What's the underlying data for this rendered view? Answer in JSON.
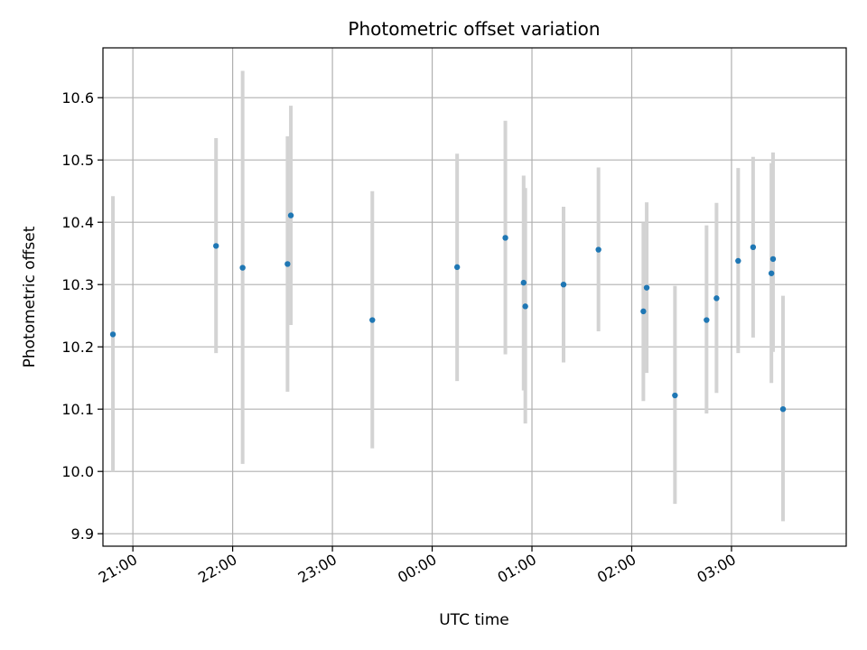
{
  "chart_data": {
    "type": "scatter",
    "title": "Photometric offset variation",
    "xlabel": "UTC time",
    "ylabel": "Photometric offset",
    "x_unit": "UTC time (hh:mm, spanning midnight)",
    "xlim": [
      "20:42",
      "04:09"
    ],
    "ylim": [
      9.88,
      10.68
    ],
    "x_ticks": [
      "21:00",
      "22:00",
      "23:00",
      "00:00",
      "01:00",
      "02:00",
      "03:00"
    ],
    "y_ticks": [
      "9.9",
      "10.0",
      "10.1",
      "10.2",
      "10.3",
      "10.4",
      "10.5",
      "10.6"
    ],
    "grid": true,
    "colors": {
      "point": "#1f77b4",
      "errorbar": "#d3d3d3",
      "grid": "#b0b0b0",
      "axes": "#000000"
    },
    "points": [
      {
        "x": "20:48",
        "y": 10.22,
        "err_low": 10.0,
        "err_high": 10.442
      },
      {
        "x": "21:50",
        "y": 10.362,
        "err_low": 10.19,
        "err_high": 10.535
      },
      {
        "x": "22:06",
        "y": 10.327,
        "err_low": 10.012,
        "err_high": 10.643
      },
      {
        "x": "22:33",
        "y": 10.333,
        "err_low": 10.128,
        "err_high": 10.538
      },
      {
        "x": "22:35",
        "y": 10.411,
        "err_low": 10.235,
        "err_high": 10.587
      },
      {
        "x": "23:24",
        "y": 10.243,
        "err_low": 10.037,
        "err_high": 10.45
      },
      {
        "x": "00:15",
        "y": 10.328,
        "err_low": 10.145,
        "err_high": 10.51
      },
      {
        "x": "00:44",
        "y": 10.375,
        "err_low": 10.188,
        "err_high": 10.563
      },
      {
        "x": "00:55",
        "y": 10.303,
        "err_low": 10.13,
        "err_high": 10.475
      },
      {
        "x": "00:56",
        "y": 10.265,
        "err_low": 10.077,
        "err_high": 10.455
      },
      {
        "x": "01:19",
        "y": 10.3,
        "err_low": 10.175,
        "err_high": 10.425
      },
      {
        "x": "01:40",
        "y": 10.356,
        "err_low": 10.225,
        "err_high": 10.488
      },
      {
        "x": "02:07",
        "y": 10.257,
        "err_low": 10.113,
        "err_high": 10.4
      },
      {
        "x": "02:09",
        "y": 10.295,
        "err_low": 10.158,
        "err_high": 10.432
      },
      {
        "x": "02:26",
        "y": 10.122,
        "err_low": 9.948,
        "err_high": 10.298
      },
      {
        "x": "02:45",
        "y": 10.243,
        "err_low": 10.093,
        "err_high": 10.395
      },
      {
        "x": "02:51",
        "y": 10.278,
        "err_low": 10.126,
        "err_high": 10.431
      },
      {
        "x": "03:04",
        "y": 10.338,
        "err_low": 10.19,
        "err_high": 10.487
      },
      {
        "x": "03:13",
        "y": 10.36,
        "err_low": 10.215,
        "err_high": 10.505
      },
      {
        "x": "03:24",
        "y": 10.318,
        "err_low": 10.142,
        "err_high": 10.495
      },
      {
        "x": "03:25",
        "y": 10.341,
        "err_low": 10.192,
        "err_high": 10.512
      },
      {
        "x": "03:31",
        "y": 10.1,
        "err_low": 9.92,
        "err_high": 10.282
      }
    ]
  }
}
